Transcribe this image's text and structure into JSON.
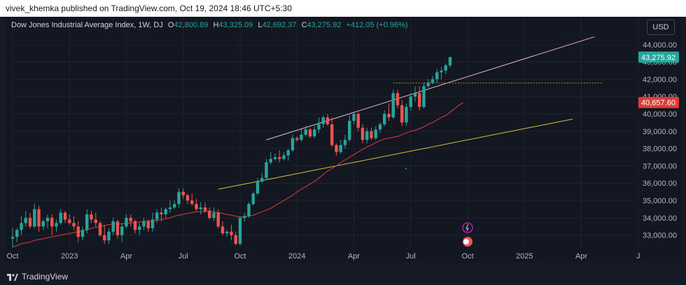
{
  "header": {
    "publisher_line": "vivek_khemka published on TradingView.com, Oct 19, 2024 18:46 UTC+5:30"
  },
  "legend": {
    "symbol": "Dow Jones Industrial Average Index, 1W, DJ",
    "o_label": "O",
    "o_value": "42,800.89",
    "h_label": "H",
    "h_value": "43,325.09",
    "l_label": "L",
    "l_value": "42,692.37",
    "c_label": "C",
    "c_value": "43,275.92",
    "change": "+412.05 (+0.96%)"
  },
  "currency_button": "USD",
  "footer": {
    "brand": "TradingView"
  },
  "colors": {
    "up": "#26a69a",
    "down": "#ef5350",
    "ma": "#e03b3b",
    "channel_upper": "#e8b4c8",
    "trend_yellow": "#d4c435",
    "background": "#131722",
    "grid": "#1f2330"
  },
  "chart_data": {
    "type": "candlestick",
    "title": "Dow Jones Industrial Average Index, 1W, DJ",
    "ylim": [
      32300,
      44800
    ],
    "y_ticks": [
      {
        "value": 33000,
        "label": "33,000.00"
      },
      {
        "value": 34000,
        "label": "34,000.00"
      },
      {
        "value": 35000,
        "label": "35,000.00"
      },
      {
        "value": 36000,
        "label": "36,000.00"
      },
      {
        "value": 37000,
        "label": "37,000.00"
      },
      {
        "value": 38000,
        "label": "38,000.00"
      },
      {
        "value": 39000,
        "label": "39,000.00"
      },
      {
        "value": 40000,
        "label": "40,000.00"
      },
      {
        "value": 41000,
        "label": "41,000.00"
      },
      {
        "value": 42000,
        "label": "42,000.00"
      },
      {
        "value": 43000,
        "label": "43,000.00"
      },
      {
        "value": 44000,
        "label": "44,000.00"
      }
    ],
    "x_ticks": [
      {
        "week": 0,
        "label": "Oct"
      },
      {
        "week": 13,
        "label": "2023"
      },
      {
        "week": 26,
        "label": "Apr"
      },
      {
        "week": 39,
        "label": "Jul"
      },
      {
        "week": 52,
        "label": "Oct"
      },
      {
        "week": 65,
        "label": "2024"
      },
      {
        "week": 78,
        "label": "Apr"
      },
      {
        "week": 91,
        "label": "Jul"
      },
      {
        "week": 104,
        "label": "Oct"
      },
      {
        "week": 117,
        "label": "2025"
      },
      {
        "week": 130,
        "label": "Apr"
      },
      {
        "week": 143,
        "label": "J"
      }
    ],
    "price_labels": [
      {
        "value": 43275.92,
        "label": "43,275.92",
        "color": "#26a69a"
      },
      {
        "value": 40657.6,
        "label": "40,657.60",
        "color": "#e03b3b"
      }
    ],
    "candles": [
      [
        32800,
        33400,
        32300,
        32900
      ],
      [
        32900,
        33400,
        32600,
        33300
      ],
      [
        33300,
        34100,
        33000,
        33700
      ],
      [
        33700,
        34400,
        33500,
        34000
      ],
      [
        34000,
        34300,
        33400,
        33500
      ],
      [
        33500,
        34800,
        33400,
        34500
      ],
      [
        34500,
        34700,
        33200,
        33500
      ],
      [
        33500,
        33900,
        33300,
        33800
      ],
      [
        33800,
        34200,
        33400,
        34000
      ],
      [
        34000,
        34200,
        33000,
        33500
      ],
      [
        33500,
        33900,
        33200,
        33700
      ],
      [
        33700,
        34500,
        33600,
        34300
      ],
      [
        34300,
        34400,
        33700,
        33900
      ],
      [
        33900,
        34200,
        33600,
        33700
      ],
      [
        33700,
        34100,
        33300,
        33500
      ],
      [
        33500,
        33800,
        32600,
        32900
      ],
      [
        32900,
        33500,
        32700,
        33300
      ],
      [
        33300,
        34500,
        33100,
        34200
      ],
      [
        34200,
        34400,
        33700,
        33900
      ],
      [
        33900,
        34300,
        33500,
        33700
      ],
      [
        33700,
        33800,
        32900,
        33000
      ],
      [
        33000,
        33600,
        32500,
        32700
      ],
      [
        32700,
        33400,
        32500,
        33200
      ],
      [
        33200,
        34000,
        33000,
        33800
      ],
      [
        33800,
        33900,
        32800,
        33000
      ],
      [
        33000,
        33700,
        32600,
        33500
      ],
      [
        33500,
        34200,
        33400,
        34000
      ],
      [
        34000,
        34200,
        33500,
        33800
      ],
      [
        33800,
        33900,
        33100,
        33300
      ],
      [
        33300,
        33700,
        33000,
        33500
      ],
      [
        33500,
        34000,
        33300,
        33800
      ],
      [
        33800,
        33900,
        33200,
        33400
      ],
      [
        33400,
        34300,
        33200,
        33900
      ],
      [
        33900,
        34500,
        33700,
        34300
      ],
      [
        34300,
        34600,
        33800,
        34200
      ],
      [
        34200,
        34600,
        34000,
        34500
      ],
      [
        34500,
        35000,
        34300,
        34600
      ],
      [
        34600,
        35000,
        34500,
        34800
      ],
      [
        34800,
        35700,
        34600,
        35500
      ],
      [
        35500,
        35700,
        35100,
        35300
      ],
      [
        35300,
        35400,
        34800,
        35000
      ],
      [
        35000,
        35400,
        34700,
        34800
      ],
      [
        34800,
        35100,
        34400,
        34500
      ],
      [
        34500,
        34900,
        34200,
        34600
      ],
      [
        34600,
        34900,
        34300,
        34400
      ],
      [
        34400,
        34600,
        33900,
        34000
      ],
      [
        34000,
        34600,
        33800,
        34300
      ],
      [
        34300,
        34500,
        33400,
        33500
      ],
      [
        33500,
        33800,
        33000,
        33100
      ],
      [
        33100,
        33300,
        32900,
        33200
      ],
      [
        33200,
        33600,
        32700,
        33000
      ],
      [
        33000,
        33200,
        32400,
        32500
      ],
      [
        32500,
        34100,
        32400,
        34000
      ],
      [
        34000,
        34300,
        33800,
        34100
      ],
      [
        34100,
        34900,
        34000,
        34800
      ],
      [
        34800,
        35500,
        34700,
        35400
      ],
      [
        35400,
        36300,
        35300,
        36100
      ],
      [
        36100,
        36600,
        36000,
        36300
      ],
      [
        36300,
        37400,
        36200,
        37200
      ],
      [
        37200,
        37800,
        37100,
        37400
      ],
      [
        37400,
        37700,
        37300,
        37500
      ],
      [
        37500,
        37900,
        37200,
        37400
      ],
      [
        37400,
        37800,
        37300,
        37600
      ],
      [
        37600,
        38000,
        37300,
        37900
      ],
      [
        37900,
        38800,
        37800,
        38600
      ],
      [
        38600,
        38700,
        38400,
        38500
      ],
      [
        38500,
        39100,
        38400,
        38800
      ],
      [
        38800,
        39300,
        38700,
        39100
      ],
      [
        39100,
        39200,
        38600,
        38700
      ],
      [
        38700,
        39300,
        38600,
        39100
      ],
      [
        39100,
        39800,
        38900,
        39400
      ],
      [
        39400,
        39900,
        39200,
        39800
      ],
      [
        39800,
        40000,
        39300,
        39400
      ],
      [
        39400,
        39800,
        38100,
        38200
      ],
      [
        38200,
        38300,
        37600,
        37800
      ],
      [
        37800,
        38500,
        37700,
        38200
      ],
      [
        38200,
        38800,
        38000,
        38500
      ],
      [
        38500,
        39900,
        38400,
        39600
      ],
      [
        39600,
        40100,
        39400,
        40000
      ],
      [
        40000,
        40100,
        39000,
        39200
      ],
      [
        39200,
        39400,
        38300,
        38500
      ],
      [
        38500,
        39200,
        38300,
        39000
      ],
      [
        39000,
        39200,
        38500,
        38600
      ],
      [
        38600,
        39300,
        38500,
        39100
      ],
      [
        39100,
        39500,
        38900,
        39400
      ],
      [
        39400,
        40200,
        39300,
        40000
      ],
      [
        40000,
        40600,
        39600,
        39800
      ],
      [
        39800,
        41400,
        39700,
        41200
      ],
      [
        41200,
        41400,
        40300,
        40500
      ],
      [
        40500,
        40800,
        39300,
        39500
      ],
      [
        39500,
        40600,
        39300,
        40400
      ],
      [
        40400,
        41200,
        40200,
        41000
      ],
      [
        41000,
        41600,
        40700,
        41200
      ],
      [
        41200,
        41600,
        40200,
        40400
      ],
      [
        40400,
        41800,
        40300,
        41600
      ],
      [
        41600,
        42000,
        41500,
        41800
      ],
      [
        41800,
        42200,
        41700,
        42000
      ],
      [
        42000,
        42600,
        41800,
        42400
      ],
      [
        42400,
        42700,
        42000,
        42500
      ],
      [
        42500,
        42900,
        42300,
        42800
      ],
      [
        42800,
        43300,
        42700,
        43276
      ]
    ],
    "ma_series": [
      32300,
      32400,
      32500,
      32550,
      32600,
      32700,
      32750,
      32800,
      32850,
      32900,
      32950,
      33000,
      33050,
      33100,
      33150,
      33200,
      33250,
      33300,
      33400,
      33450,
      33500,
      33550,
      33600,
      33650,
      33650,
      33650,
      33700,
      33700,
      33750,
      33750,
      33800,
      33800,
      33850,
      33850,
      33900,
      33950,
      34000,
      34100,
      34150,
      34200,
      34250,
      34300,
      34350,
      34350,
      34350,
      34400,
      34350,
      34300,
      34250,
      34200,
      34150,
      34100,
      34050,
      34050,
      34100,
      34150,
      34250,
      34350,
      34450,
      34550,
      34700,
      34850,
      35000,
      35150,
      35300,
      35500,
      35650,
      35800,
      35950,
      36100,
      36300,
      36500,
      36700,
      36850,
      37000,
      37200,
      37350,
      37500,
      37650,
      37800,
      37950,
      38100,
      38200,
      38350,
      38450,
      38550,
      38600,
      38650,
      38700,
      38800,
      38900,
      39000,
      39050,
      39150,
      39250,
      39400,
      39500,
      39650,
      39800,
      39900,
      40100,
      40300,
      40500,
      40657.6
    ],
    "ma_start_week": 0,
    "trendlines": [
      {
        "name": "",
        "color": "#e8b4c8",
        "points": [
          [
            58,
            38500
          ],
          [
            133,
            44450
          ]
        ]
      },
      {
        "name": "",
        "color": "#d4c435",
        "points": [
          [
            47,
            35650
          ],
          [
            128,
            39700
          ]
        ]
      },
      {
        "name": "",
        "color": "#a89a30",
        "points": [
          [
            87,
            41780
          ],
          [
            135,
            41780
          ]
        ],
        "dashed": true
      }
    ]
  }
}
